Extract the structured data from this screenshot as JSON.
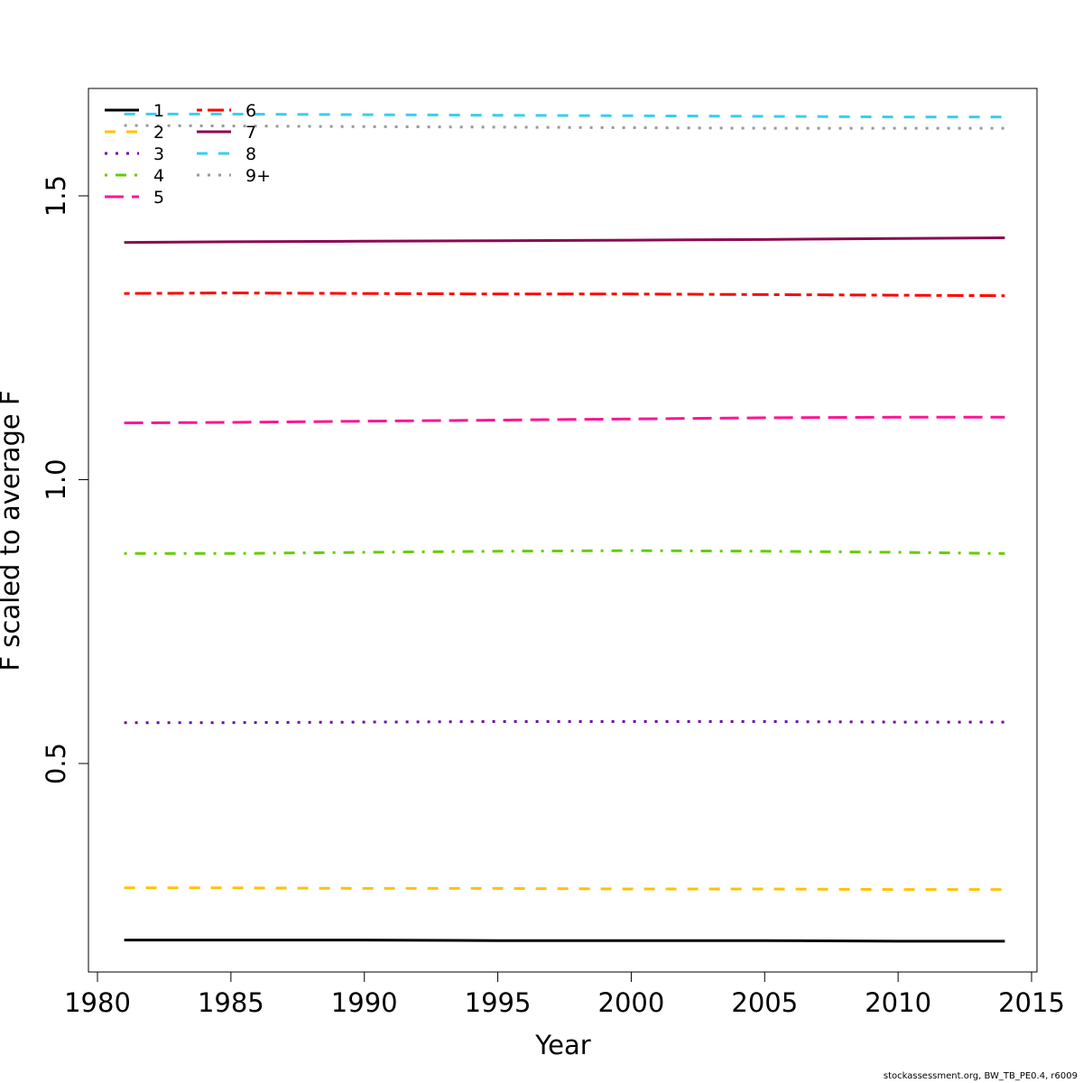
{
  "chart_data": {
    "type": "line",
    "title": "",
    "xlabel": "Year",
    "ylabel": "F scaled to average F",
    "xlim": [
      1980,
      2015
    ],
    "ylim": [
      0.15,
      1.7
    ],
    "xticks": [
      1980,
      1985,
      1990,
      1995,
      2000,
      2005,
      2010,
      2015
    ],
    "yticks": [
      0.5,
      1.0,
      1.5
    ],
    "ytick_labels": [
      "0.5",
      "1.0",
      "1.5"
    ],
    "grid": false,
    "legend_position": "top-left",
    "x": [
      1981,
      1985,
      1990,
      1995,
      2000,
      2005,
      2010,
      2014
    ],
    "series": [
      {
        "name": "1",
        "color": "#000000",
        "dash": "solid",
        "values": [
          0.189,
          0.189,
          0.189,
          0.188,
          0.188,
          0.188,
          0.187,
          0.187
        ]
      },
      {
        "name": "2",
        "color": "#FFC200",
        "dash": "dashed",
        "values": [
          0.281,
          0.281,
          0.28,
          0.28,
          0.279,
          0.279,
          0.278,
          0.278
        ]
      },
      {
        "name": "3",
        "color": "#6A0DAD",
        "dash": "dotted",
        "values": [
          0.572,
          0.572,
          0.573,
          0.574,
          0.574,
          0.574,
          0.573,
          0.573
        ]
      },
      {
        "name": "4",
        "color": "#66CC00",
        "dash": "dotdash",
        "values": [
          0.87,
          0.87,
          0.872,
          0.874,
          0.875,
          0.874,
          0.872,
          0.87
        ]
      },
      {
        "name": "5",
        "color": "#FF1493",
        "dash": "longdash",
        "values": [
          1.1,
          1.101,
          1.103,
          1.105,
          1.107,
          1.109,
          1.11,
          1.11
        ]
      },
      {
        "name": "6",
        "color": "#FF0000",
        "dash": "twodash",
        "values": [
          1.328,
          1.329,
          1.328,
          1.327,
          1.327,
          1.326,
          1.325,
          1.324
        ]
      },
      {
        "name": "7",
        "color": "#8B0A50",
        "dash": "solid",
        "values": [
          1.418,
          1.419,
          1.42,
          1.421,
          1.422,
          1.423,
          1.425,
          1.426
        ]
      },
      {
        "name": "8",
        "color": "#3ACDEF",
        "dash": "dashed",
        "values": [
          1.644,
          1.644,
          1.643,
          1.642,
          1.641,
          1.64,
          1.639,
          1.639
        ]
      },
      {
        "name": "9+",
        "color": "#999999",
        "dash": "dotted",
        "values": [
          1.624,
          1.623,
          1.622,
          1.621,
          1.62,
          1.619,
          1.619,
          1.619
        ]
      }
    ]
  },
  "footer": "stockassessment.org, BW_TB_PE0.4, r6009"
}
